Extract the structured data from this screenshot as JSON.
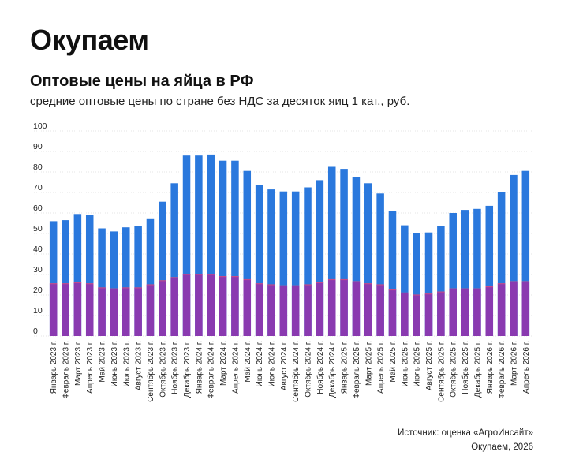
{
  "header": {
    "brand": "Окупаем"
  },
  "chart_data": {
    "type": "bar",
    "title": "Оптовые цены на яйца в РФ",
    "subtitle": "средние оптовые цены по стране без НДС за десяток яиц 1 кат., руб.",
    "xlabel": "",
    "ylabel": "",
    "ylim": [
      0,
      100
    ],
    "yticks": [
      0,
      10,
      20,
      30,
      40,
      50,
      60,
      70,
      80,
      90,
      100
    ],
    "grid": true,
    "categories": [
      "Январь 2023 г.",
      "Февраль 2023 г.",
      "Март 2023 г.",
      "Апрель 2023 г.",
      "Май 2023 г.",
      "Июнь 2023 г.",
      "Июль 2023 г.",
      "Август 2023 г.",
      "Сентябрь 2023 г.",
      "Октябрь 2023 г.",
      "Ноябрь 2023 г.",
      "Декабрь 2023 г.",
      "Январь 2024 г.",
      "Февраль 2024 г.",
      "Март 2024 г.",
      "Апрель 2024 г.",
      "Май 2024 г.",
      "Июнь 2024 г.",
      "Июль 2024 г.",
      "Август 2024 г.",
      "Сентябрь 2024 г.",
      "Октябрь 2024 г.",
      "Ноябрь 2024 г.",
      "Декабрь 2024 г.",
      "Январь 2025 г.",
      "Февраль 2025 г.",
      "Март 2025 г.",
      "Апрель 2025 г.",
      "Май 2025 г.",
      "Июнь 2025 г.",
      "Июль 2025 г.",
      "Август 2025 г.",
      "Сентябрь 2025 г.",
      "Октябрь 2025 г.",
      "Ноябрь 2025 г.",
      "Декабрь 2025 г.",
      "Январь 2026 г.",
      "Февраль 2026 г.",
      "Март 2026 г.",
      "Апрель 2026 г."
    ],
    "series": [
      {
        "values": [
          56,
          56.5,
          59.5,
          59,
          52.5,
          51,
          53,
          53.5,
          57,
          65.5,
          74.5,
          88,
          88,
          88.5,
          85.5,
          85.5,
          80.5,
          73.5,
          71.5,
          70.5,
          70.5,
          72.5,
          76,
          82.5,
          81.5,
          77.5,
          74.5,
          69.5,
          61,
          54,
          50,
          50.5,
          53.5,
          60,
          61.5,
          62,
          63.5,
          70,
          78.5,
          80.5
        ],
        "color": "#2a78dd"
      }
    ],
    "band_values": [
      25.5,
      25.5,
      26,
      25.5,
      23.5,
      23,
      23.5,
      23.5,
      25,
      27,
      28.5,
      30,
      30,
      30,
      29,
      29,
      27.5,
      25.5,
      25,
      24.5,
      24.5,
      25,
      26,
      27.5,
      27.5,
      26.5,
      25.5,
      25,
      22.5,
      21,
      20,
      20.5,
      21.5,
      23,
      23,
      23,
      24,
      25.5,
      26.5,
      26.5
    ],
    "band_color": "#8a3ab0"
  },
  "footer": {
    "source": "Источник: оценка «АгроИнсайт»",
    "brand_year": "Окупаем, 2026"
  }
}
